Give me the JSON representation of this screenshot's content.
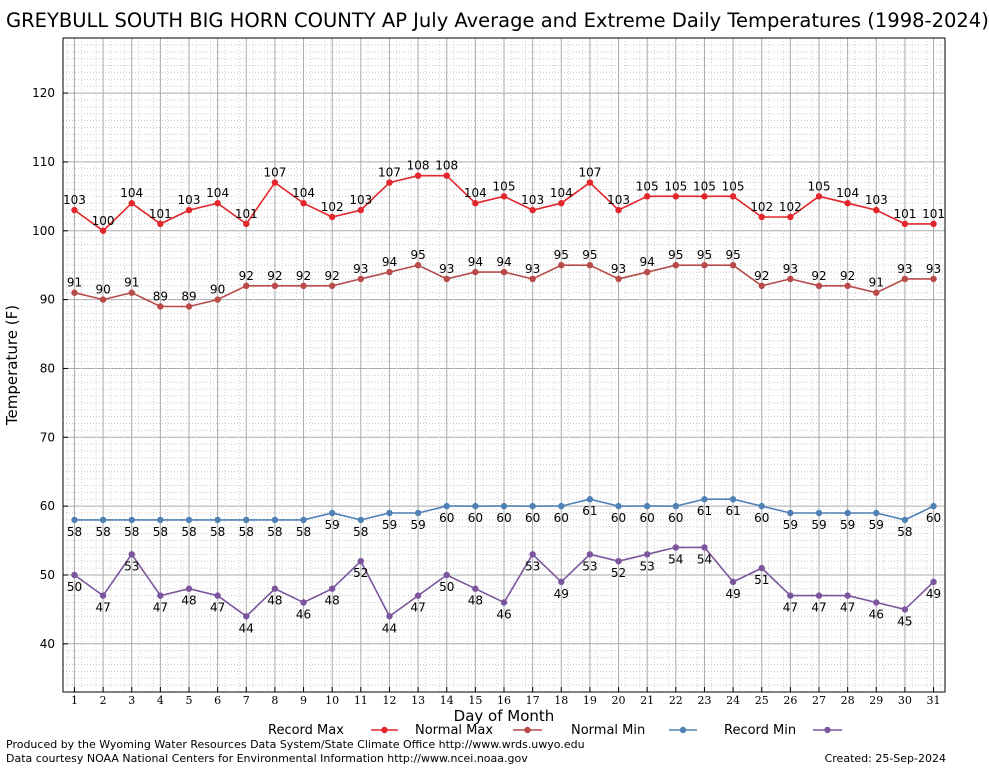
{
  "title": "GREYBULL SOUTH BIG HORN COUNTY AP July Average and Extreme Daily Temperatures (1998-2024)",
  "footer": {
    "produced_by": "Produced by the Wyoming Water Resources Data System/State Climate Office http://www.wrds.uwyo.edu",
    "courtesy": "Data courtesy NOAA National Centers for Environmental Information http://www.ncei.noaa.gov",
    "created": "Created: 25-Sep-2024"
  },
  "chart_data": {
    "type": "line",
    "xlabel": "Day of Month",
    "ylabel": "Temperature (F)",
    "ylim": [
      33,
      128
    ],
    "xlim": [
      0.6,
      31.4
    ],
    "y_ticks": [
      40,
      50,
      60,
      70,
      80,
      90,
      100,
      110,
      120
    ],
    "x": [
      1,
      2,
      3,
      4,
      5,
      6,
      7,
      8,
      9,
      10,
      11,
      12,
      13,
      14,
      15,
      16,
      17,
      18,
      19,
      20,
      21,
      22,
      23,
      24,
      25,
      26,
      27,
      28,
      29,
      30,
      31
    ],
    "grid": true,
    "legend_position": "bottom",
    "series": [
      {
        "name": "Record Max",
        "color": "#e3262b",
        "values": [
          103,
          100,
          104,
          101,
          103,
          104,
          101,
          107,
          104,
          102,
          103,
          107,
          108,
          108,
          104,
          105,
          103,
          104,
          107,
          103,
          105,
          105,
          105,
          105,
          102,
          102,
          105,
          104,
          103,
          101,
          101
        ]
      },
      {
        "name": "Normal Max",
        "color": "#b84a4a",
        "values": [
          91,
          90,
          91,
          89,
          89,
          90,
          92,
          92,
          92,
          92,
          93,
          94,
          95,
          93,
          94,
          94,
          93,
          95,
          95,
          93,
          94,
          95,
          95,
          95,
          92,
          93,
          92,
          92,
          91,
          93,
          93
        ]
      },
      {
        "name": "Normal Min",
        "color": "#4f81b5",
        "values": [
          58,
          58,
          58,
          58,
          58,
          58,
          58,
          58,
          58,
          59,
          58,
          59,
          59,
          60,
          60,
          60,
          60,
          60,
          61,
          60,
          60,
          60,
          61,
          61,
          60,
          59,
          59,
          59,
          59,
          58,
          60
        ]
      },
      {
        "name": "Record Min",
        "color": "#7b559d",
        "values": [
          50,
          47,
          53,
          47,
          48,
          47,
          44,
          48,
          46,
          48,
          52,
          44,
          47,
          50,
          48,
          46,
          53,
          49,
          53,
          52,
          53,
          54,
          54,
          49,
          51,
          47,
          47,
          47,
          46,
          45,
          49
        ]
      }
    ]
  }
}
